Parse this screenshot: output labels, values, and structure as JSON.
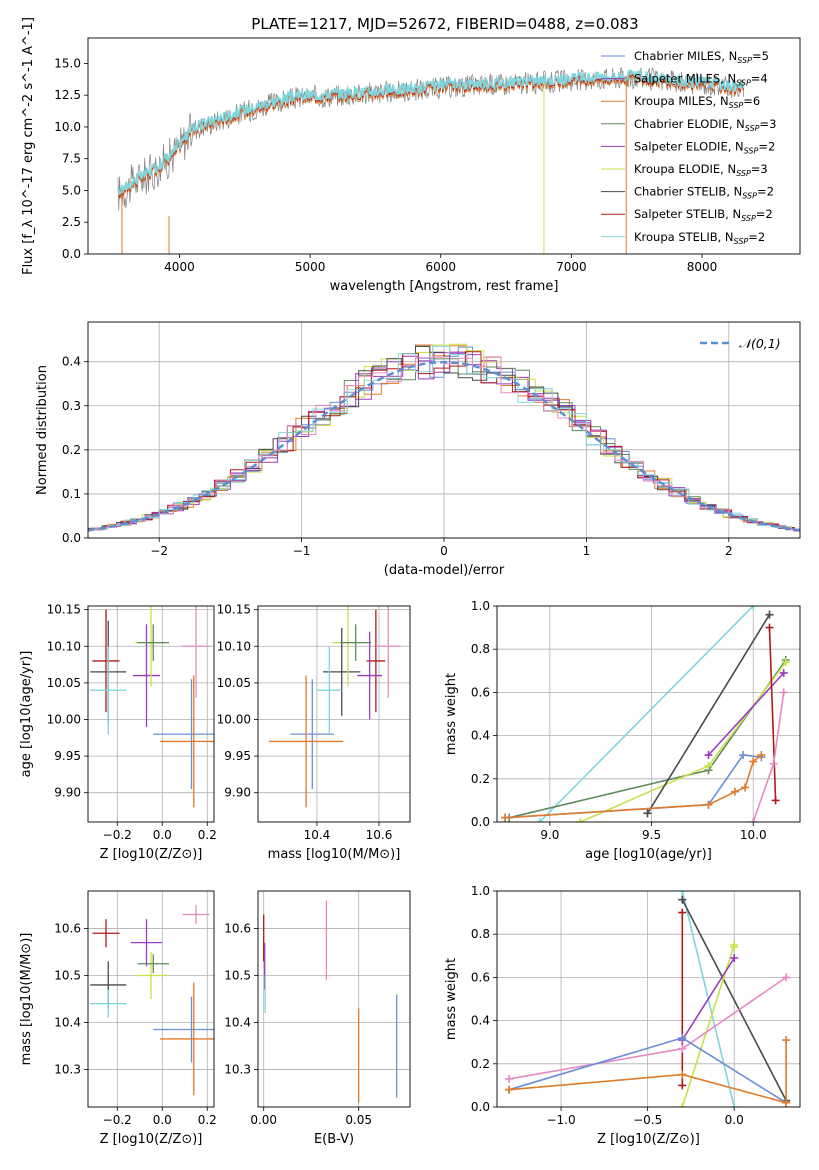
{
  "title": "PLATE=1217, MJD=52672, FIBERID=0488, z=0.083",
  "colors": {
    "Chabrier MILES": "#6a8fd8",
    "Salpeter MILES": "#9b3bbf",
    "Kroupa MILES": "#e07b2a",
    "Chabrier ELODIE": "#5f8a5f",
    "Salpeter ELODIE": "#9b3bbf",
    "Kroupa ELODIE": "#c9e04a",
    "Chabrier STELIB": "#4a4a4a",
    "Salpeter STELIB": "#b01a1a",
    "Kroupa STELIB": "#7fd6dc",
    "pink": "#e78ac3",
    "data": "#808080"
  },
  "chart_data": [
    {
      "id": "spectrum",
      "type": "line",
      "xlabel": "wavelength [Angstrom, rest frame]",
      "ylabel": "Flux [f_λ 10^-17 erg cm^-2 s^-1 A^-1]",
      "xlim": [
        3300,
        8750
      ],
      "ylim": [
        0,
        17
      ],
      "xticks": [
        "4000",
        "5000",
        "6000",
        "7000",
        "8000"
      ],
      "yticks": [
        "0.0",
        "2.5",
        "5.0",
        "7.5",
        "10.0",
        "12.5",
        "15.0"
      ],
      "legend": [
        "Chabrier MILES, N_SSP=5",
        "Salpeter MILES, N_SSP=4",
        "Kroupa MILES, N_SSP=6",
        "Chabrier ELODIE, N_SSP=3",
        "Salpeter ELODIE, N_SSP=2",
        "Kroupa ELODIE, N_SSP=3",
        "Chabrier STELIB, N_SSP=2",
        "Salpeter STELIB, N_SSP=2",
        "Kroupa STELIB, N_SSP=2"
      ],
      "legend_position": "right",
      "continuum": {
        "x": [
          3550,
          3650,
          3800,
          3950,
          4100,
          4300,
          4500,
          4700,
          4900,
          5100,
          5400,
          5700,
          6000,
          6300,
          6600,
          6900,
          7200,
          7500,
          7800,
          8100,
          8300
        ],
        "y": [
          4.8,
          5.6,
          6.5,
          7.8,
          9.8,
          10.5,
          11.2,
          11.8,
          12.3,
          12.4,
          12.6,
          12.8,
          13.1,
          13.3,
          13.4,
          13.6,
          13.8,
          13.9,
          13.5,
          13.3,
          13.0
        ]
      }
    },
    {
      "id": "residuals",
      "type": "area",
      "xlabel": "(data-model)/error",
      "ylabel": "Normed distribution",
      "xlim": [
        -2.5,
        2.5
      ],
      "ylim": [
        0,
        0.49
      ],
      "xticks": [
        "−2",
        "−1",
        "0",
        "1",
        "2"
      ],
      "yticks": [
        "0.0",
        "0.1",
        "0.2",
        "0.3",
        "0.4"
      ],
      "grid": true,
      "legend": [
        "𝒩(0,1)"
      ],
      "legend_position": "top-right"
    },
    {
      "id": "age_vs_Z",
      "type": "scatter",
      "xlabel": "Z [log10(Z/Z⊙)]",
      "ylabel": "age [log10(age/yr)]",
      "xlim": [
        -0.33,
        0.23
      ],
      "ylim": [
        9.86,
        10.155
      ],
      "xticks": [
        "−0.2",
        "0.0",
        "0.2"
      ],
      "yticks": [
        "9.90",
        "9.95",
        "10.00",
        "10.05",
        "10.10",
        "10.15"
      ],
      "grid": true,
      "points": [
        {
          "series": "Chabrier MILES",
          "x": 0.13,
          "y": 9.98,
          "xerr": 0.17,
          "yerr": 0.075
        },
        {
          "series": "Kroupa MILES",
          "x": 0.14,
          "y": 9.97,
          "xerr": 0.15,
          "yerr": 0.09
        },
        {
          "series": "Salpeter STELIB",
          "x": -0.25,
          "y": 10.08,
          "xerr": 0.06,
          "yerr": 0.07
        },
        {
          "series": "Chabrier STELIB",
          "x": -0.24,
          "y": 10.065,
          "xerr": 0.08,
          "yerr": 0.07
        },
        {
          "series": "Kroupa STELIB",
          "x": -0.24,
          "y": 10.04,
          "xerr": 0.08,
          "yerr": 0.06
        },
        {
          "series": "Salpeter ELODIE",
          "x": -0.07,
          "y": 10.06,
          "xerr": 0.06,
          "yerr": 0.07
        },
        {
          "series": "Kroupa ELODIE",
          "x": -0.05,
          "y": 10.105,
          "xerr": 0.07,
          "yerr": 0.06
        },
        {
          "series": "Chabrier ELODIE",
          "x": -0.04,
          "y": 10.105,
          "xerr": 0.07,
          "yerr": 0.025
        },
        {
          "series": "pink",
          "x": 0.15,
          "y": 10.1,
          "xerr": 0.06,
          "yerr": 0.07
        }
      ]
    },
    {
      "id": "age_vs_mass",
      "type": "scatter",
      "xlabel": "mass [log10(M/M⊙)]",
      "ylabel": "",
      "xlim": [
        10.21,
        10.7
      ],
      "ylim": [
        9.86,
        10.155
      ],
      "xticks": [
        "10.4",
        "10.6"
      ],
      "yticks": [
        "9.90",
        "9.95",
        "10.00",
        "10.05",
        "10.10",
        "10.15"
      ],
      "grid": true,
      "points": [
        {
          "series": "Chabrier MILES",
          "x": 10.385,
          "y": 9.98,
          "xerr": 0.07,
          "yerr": 0.075
        },
        {
          "series": "Kroupa MILES",
          "x": 10.365,
          "y": 9.97,
          "xerr": 0.12,
          "yerr": 0.09
        },
        {
          "series": "Salpeter STELIB",
          "x": 10.59,
          "y": 10.08,
          "xerr": 0.03,
          "yerr": 0.07
        },
        {
          "series": "Chabrier STELIB",
          "x": 10.48,
          "y": 10.065,
          "xerr": 0.06,
          "yerr": 0.06
        },
        {
          "series": "Kroupa STELIB",
          "x": 10.44,
          "y": 10.04,
          "xerr": 0.04,
          "yerr": 0.06
        },
        {
          "series": "Salpeter ELODIE",
          "x": 10.57,
          "y": 10.06,
          "xerr": 0.04,
          "yerr": 0.06
        },
        {
          "series": "Kroupa ELODIE",
          "x": 10.5,
          "y": 10.105,
          "xerr": 0.05,
          "yerr": 0.06
        },
        {
          "series": "Chabrier ELODIE",
          "x": 10.525,
          "y": 10.105,
          "xerr": 0.05,
          "yerr": 0.025
        },
        {
          "series": "pink",
          "x": 10.63,
          "y": 10.1,
          "xerr": 0.04,
          "yerr": 0.07
        }
      ]
    },
    {
      "id": "weight_vs_age",
      "type": "line",
      "xlabel": "age [log10(age/yr)]",
      "ylabel": "mass weight",
      "xlim": [
        8.74,
        10.23
      ],
      "ylim": [
        0,
        1
      ],
      "xticks": [
        "9.0",
        "9.5",
        "10.0"
      ],
      "yticks": [
        "0.0",
        "0.2",
        "0.4",
        "0.6",
        "0.8",
        "1.0"
      ],
      "grid": true,
      "series": [
        {
          "name": "Kroupa STELIB",
          "x": [
            8.95,
            10.0
          ],
          "y": [
            0.0,
            1.0
          ]
        },
        {
          "name": "Chabrier ELODIE",
          "x": [
            8.8,
            9.78,
            10.16
          ],
          "y": [
            0.02,
            0.24,
            0.75
          ]
        },
        {
          "name": "Kroupa ELODIE",
          "x": [
            9.15,
            9.78,
            10.16
          ],
          "y": [
            0.0,
            0.26,
            0.74
          ]
        },
        {
          "name": "Salpeter MILES",
          "x": [
            9.78,
            10.15
          ],
          "y": [
            0.31,
            0.69
          ]
        },
        {
          "name": "Chabrier STELIB",
          "x": [
            9.48,
            10.08
          ],
          "y": [
            0.04,
            0.96
          ]
        },
        {
          "name": "Salpeter STELIB",
          "x": [
            10.08,
            10.11
          ],
          "y": [
            0.9,
            0.1
          ]
        },
        {
          "name": "pink",
          "x": [
            10.0,
            10.1,
            10.15
          ],
          "y": [
            0.0,
            0.27,
            0.6
          ]
        },
        {
          "name": "Chabrier MILES",
          "x": [
            8.78,
            9.78,
            9.95,
            10.04
          ],
          "y": [
            0.02,
            0.08,
            0.31,
            0.3
          ]
        },
        {
          "name": "Kroupa MILES",
          "x": [
            8.78,
            9.78,
            9.91,
            9.96,
            10.0,
            10.04
          ],
          "y": [
            0.02,
            0.08,
            0.14,
            0.16,
            0.28,
            0.31
          ]
        }
      ]
    },
    {
      "id": "mass_vs_Z",
      "type": "scatter",
      "xlabel": "Z [log10(Z/Z⊙)]",
      "ylabel": "mass [log10(M/M⊙)]",
      "xlim": [
        -0.33,
        0.23
      ],
      "ylim": [
        10.22,
        10.68
      ],
      "xticks": [
        "−0.2",
        "0.0",
        "0.2"
      ],
      "yticks": [
        "10.3",
        "10.4",
        "10.5",
        "10.6"
      ],
      "grid": true,
      "points": [
        {
          "series": "Chabrier MILES",
          "x": 0.13,
          "y": 10.385,
          "xerr": 0.17,
          "yerr": 0.07
        },
        {
          "series": "Kroupa MILES",
          "x": 0.14,
          "y": 10.365,
          "xerr": 0.15,
          "yerr": 0.12
        },
        {
          "series": "Salpeter STELIB",
          "x": -0.25,
          "y": 10.59,
          "xerr": 0.06,
          "yerr": 0.03
        },
        {
          "series": "Chabrier STELIB",
          "x": -0.24,
          "y": 10.48,
          "xerr": 0.08,
          "yerr": 0.05
        },
        {
          "series": "Kroupa STELIB",
          "x": -0.24,
          "y": 10.44,
          "xerr": 0.08,
          "yerr": 0.03
        },
        {
          "series": "Salpeter ELODIE",
          "x": -0.07,
          "y": 10.57,
          "xerr": 0.07,
          "yerr": 0.05
        },
        {
          "series": "Kroupa ELODIE",
          "x": -0.05,
          "y": 10.5,
          "xerr": 0.07,
          "yerr": 0.05
        },
        {
          "series": "Chabrier ELODIE",
          "x": -0.04,
          "y": 10.525,
          "xerr": 0.07,
          "yerr": 0.02
        },
        {
          "series": "pink",
          "x": 0.15,
          "y": 10.63,
          "xerr": 0.06,
          "yerr": 0.02
        }
      ]
    },
    {
      "id": "mass_vs_ebv",
      "type": "scatter",
      "xlabel": "E(B-V)",
      "ylabel": "",
      "xlim": [
        -0.003,
        0.077
      ],
      "ylim": [
        10.22,
        10.68
      ],
      "xticks": [
        "0.00",
        "0.05"
      ],
      "yticks": [
        "10.3",
        "10.4",
        "10.5",
        "10.6"
      ],
      "grid": true,
      "points": [
        {
          "series": "Chabrier MILES",
          "x": 0.07,
          "y": 10.35,
          "xerr": 0,
          "yerr": 0.11
        },
        {
          "series": "Kroupa MILES",
          "x": 0.05,
          "y": 10.33,
          "xerr": 0,
          "yerr": 0.1
        },
        {
          "series": "pink",
          "x": 0.033,
          "y": 10.575,
          "xerr": 0,
          "yerr": 0.085
        },
        {
          "series": "Salpeter STELIB",
          "x": 0.0,
          "y": 10.58,
          "xerr": 0,
          "yerr": 0.05
        },
        {
          "series": "Salpeter MILES",
          "x": 0.0005,
          "y": 10.52,
          "xerr": 0,
          "yerr": 0.05
        },
        {
          "series": "Kroupa STELIB",
          "x": 0.0008,
          "y": 10.46,
          "xerr": 0,
          "yerr": 0.04
        }
      ]
    },
    {
      "id": "weight_vs_Z",
      "type": "line",
      "xlabel": "Z [log10(Z/Z⊙)]",
      "ylabel": "mass weight",
      "xlim": [
        -1.37,
        0.38
      ],
      "ylim": [
        0,
        1
      ],
      "xticks": [
        "−1.0",
        "−0.5",
        "0.0"
      ],
      "yticks": [
        "0.0",
        "0.2",
        "0.4",
        "0.6",
        "0.8",
        "1.0"
      ],
      "grid": true,
      "series": [
        {
          "name": "Kroupa STELIB",
          "x": [
            -0.3,
            0.0
          ],
          "y": [
            1.0,
            0.0
          ]
        },
        {
          "name": "Chabrier STELIB",
          "x": [
            -0.3,
            0.3
          ],
          "y": [
            0.96,
            0.03
          ]
        },
        {
          "name": "Salpeter STELIB",
          "x": [
            -0.3,
            -0.3
          ],
          "y": [
            0.9,
            0.1
          ]
        },
        {
          "name": "Kroupa ELODIE",
          "x": [
            -0.3,
            0.0,
            0.0
          ],
          "y": [
            0.0,
            0.75,
            0.74
          ]
        },
        {
          "name": "Salpeter MILES",
          "x": [
            -0.3,
            0.0
          ],
          "y": [
            0.31,
            0.69
          ]
        },
        {
          "name": "pink",
          "x": [
            -1.3,
            -0.3,
            0.3
          ],
          "y": [
            0.13,
            0.27,
            0.6
          ]
        },
        {
          "name": "Chabrier MILES",
          "x": [
            -1.3,
            -0.3,
            0.3
          ],
          "y": [
            0.08,
            0.32,
            0.02
          ]
        },
        {
          "name": "Kroupa MILES",
          "x": [
            -1.3,
            -0.3,
            0.3,
            0.3
          ],
          "y": [
            0.08,
            0.15,
            0.02,
            0.31
          ]
        }
      ]
    }
  ]
}
